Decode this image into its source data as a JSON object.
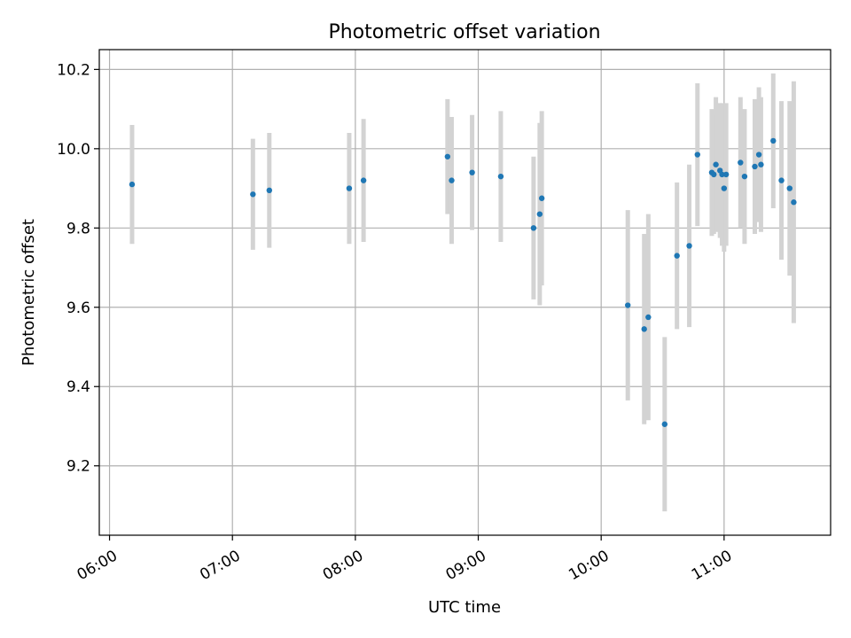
{
  "chart_data": {
    "type": "scatter",
    "title": "Photometric offset variation",
    "xlabel": "UTC time",
    "ylabel": "Photometric offset",
    "xlim": [
      "05:55",
      "11:52"
    ],
    "ylim": [
      9.025,
      10.25
    ],
    "x_ticks": [
      "06:00",
      "07:00",
      "08:00",
      "09:00",
      "10:00",
      "11:00"
    ],
    "y_ticks": [
      "9.2",
      "9.4",
      "9.6",
      "9.8",
      "10.0",
      "10.2"
    ],
    "grid": true,
    "colors": {
      "point": "#1f77b4",
      "errorbar": "#d3d3d3",
      "grid": "#b0b0b0"
    },
    "points": [
      {
        "t": "06:11",
        "y": 9.91,
        "err": 0.15
      },
      {
        "t": "07:10",
        "y": 9.885,
        "err": 0.14
      },
      {
        "t": "07:18",
        "y": 9.895,
        "err": 0.145
      },
      {
        "t": "07:57",
        "y": 9.9,
        "err": 0.14
      },
      {
        "t": "08:04",
        "y": 9.92,
        "err": 0.155
      },
      {
        "t": "08:45",
        "y": 9.98,
        "err": 0.145
      },
      {
        "t": "08:47",
        "y": 9.92,
        "err": 0.16
      },
      {
        "t": "08:57",
        "y": 9.94,
        "err": 0.145
      },
      {
        "t": "09:11",
        "y": 9.93,
        "err": 0.165
      },
      {
        "t": "09:27",
        "y": 9.8,
        "err": 0.18
      },
      {
        "t": "09:30",
        "y": 9.835,
        "err": 0.23
      },
      {
        "t": "09:31",
        "y": 9.875,
        "err": 0.22
      },
      {
        "t": "10:13",
        "y": 9.605,
        "err": 0.24
      },
      {
        "t": "10:21",
        "y": 9.545,
        "err": 0.24
      },
      {
        "t": "10:23",
        "y": 9.575,
        "err": 0.26
      },
      {
        "t": "10:31",
        "y": 9.305,
        "err": 0.22
      },
      {
        "t": "10:37",
        "y": 9.73,
        "err": 0.185
      },
      {
        "t": "10:43",
        "y": 9.755,
        "err": 0.205
      },
      {
        "t": "10:47",
        "y": 9.985,
        "err": 0.18
      },
      {
        "t": "10:54",
        "y": 9.94,
        "err": 0.16
      },
      {
        "t": "10:55",
        "y": 9.935,
        "err": 0.15
      },
      {
        "t": "10:56",
        "y": 9.96,
        "err": 0.17
      },
      {
        "t": "10:58",
        "y": 9.945,
        "err": 0.17
      },
      {
        "t": "10:59",
        "y": 9.935,
        "err": 0.18
      },
      {
        "t": "11:00",
        "y": 9.9,
        "err": 0.16
      },
      {
        "t": "11:01",
        "y": 9.935,
        "err": 0.18
      },
      {
        "t": "11:08",
        "y": 9.965,
        "err": 0.165
      },
      {
        "t": "11:10",
        "y": 9.93,
        "err": 0.17
      },
      {
        "t": "11:15",
        "y": 9.955,
        "err": 0.17
      },
      {
        "t": "11:17",
        "y": 9.985,
        "err": 0.17
      },
      {
        "t": "11:18",
        "y": 9.96,
        "err": 0.17
      },
      {
        "t": "11:24",
        "y": 10.02,
        "err": 0.17
      },
      {
        "t": "11:28",
        "y": 9.92,
        "err": 0.2
      },
      {
        "t": "11:32",
        "y": 9.9,
        "err": 0.22
      },
      {
        "t": "11:34",
        "y": 9.865,
        "err": 0.305
      }
    ]
  }
}
